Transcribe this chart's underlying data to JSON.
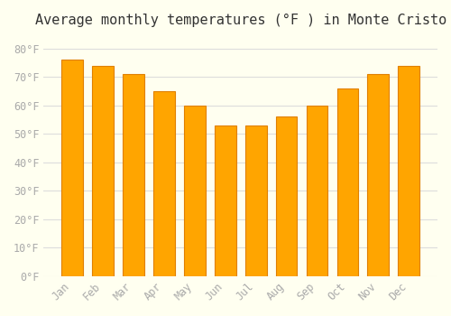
{
  "title": "Average monthly temperatures (°F ) in Monte Cristo",
  "months": [
    "Jan",
    "Feb",
    "Mar",
    "Apr",
    "May",
    "Jun",
    "Jul",
    "Aug",
    "Sep",
    "Oct",
    "Nov",
    "Dec"
  ],
  "values": [
    76,
    74,
    71,
    65,
    60,
    53,
    53,
    56,
    60,
    66,
    71,
    74
  ],
  "bar_color": "#FFA500",
  "bar_edge_color": "#E08000",
  "background_color": "#FFFFF0",
  "grid_color": "#DDDDDD",
  "ylim": [
    0,
    85
  ],
  "yticks": [
    0,
    10,
    20,
    30,
    40,
    50,
    60,
    70,
    80
  ],
  "ytick_labels": [
    "0°F",
    "10°F",
    "20°F",
    "30°F",
    "40°F",
    "50°F",
    "60°F",
    "70°F",
    "80°F"
  ],
  "title_fontsize": 11,
  "tick_fontsize": 8.5,
  "tick_color": "#AAAAAA",
  "font_family": "monospace"
}
